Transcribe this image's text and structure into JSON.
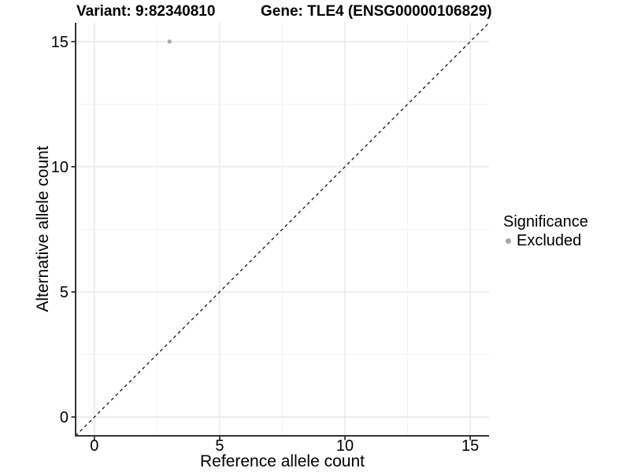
{
  "figure": {
    "titles": {
      "variant": "Variant: 9:82340810",
      "gene": "Gene: TLE4 (ENSG00000106829)"
    }
  },
  "legend": {
    "title": "Significance",
    "items": [
      {
        "label": "Excluded",
        "color": "#a5a5a5"
      }
    ]
  },
  "chart_data": {
    "type": "scatter",
    "title": "Variant: 9:82340810 | Gene: TLE4 (ENSG00000106829)",
    "xlabel": "Reference allele count",
    "ylabel": "Alternative allele count",
    "xlim": [
      -0.75,
      15.75
    ],
    "ylim": [
      -0.75,
      15.75
    ],
    "x_major_ticks": [
      0,
      5,
      10,
      15
    ],
    "y_major_ticks": [
      0,
      5,
      10,
      15
    ],
    "x_minor_ticks": [
      2.5,
      7.5,
      12.5
    ],
    "y_minor_ticks": [
      2.5,
      7.5,
      12.5
    ],
    "grid": "major and minor, light gray, white background",
    "legend_position": "right",
    "legend_title": "Significance",
    "series": [
      {
        "name": "Excluded",
        "color": "#a5a5a5",
        "points": [
          {
            "x": 3,
            "y": 15
          }
        ]
      }
    ],
    "reference_line": {
      "kind": "identity y=x",
      "style": "dashed",
      "color": "#000000"
    }
  },
  "colors": {
    "background": "#ffffff",
    "text": "#000000",
    "axis": "#333333",
    "grid_major": "#e7e7e7",
    "grid_minor": "#f3f3f3",
    "point": "#a5a5a5"
  }
}
